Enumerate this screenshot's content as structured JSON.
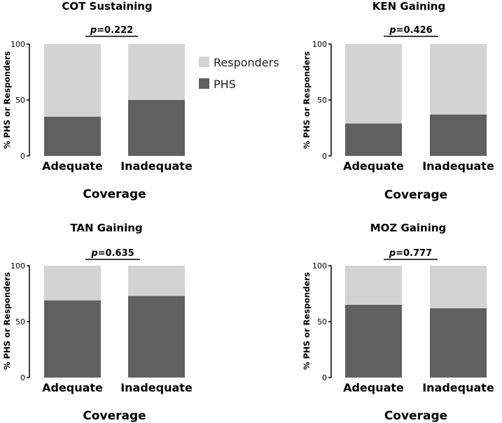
{
  "chart_data": [
    {
      "type": "bar",
      "stacked": true,
      "title": "COT Sustaining",
      "p_label": "p",
      "p_value": "=0.222",
      "categories": [
        "Adequate",
        "Inadequate"
      ],
      "series": [
        {
          "name": "PHS",
          "values": [
            35,
            50
          ]
        },
        {
          "name": "Responders",
          "values": [
            65,
            50
          ]
        }
      ],
      "xlabel": "Coverage",
      "ylabel": "% PHS or Responders",
      "ylim": [
        0,
        100
      ],
      "yticks": [
        "0",
        "50",
        "100"
      ],
      "colors": {
        "PHS": "#606060",
        "Responders": "#d3d3d3"
      }
    },
    {
      "type": "bar",
      "stacked": true,
      "title": "KEN Gaining",
      "p_label": "p",
      "p_value": "=0.426",
      "categories": [
        "Adequate",
        "Inadequate"
      ],
      "series": [
        {
          "name": "PHS",
          "values": [
            29,
            37
          ]
        },
        {
          "name": "Responders",
          "values": [
            71,
            63
          ]
        }
      ],
      "xlabel": "Coverage",
      "ylabel": "% PHS or Responders",
      "ylim": [
        0,
        100
      ],
      "yticks": [
        "0",
        "50",
        "100"
      ],
      "colors": {
        "PHS": "#606060",
        "Responders": "#d3d3d3"
      }
    },
    {
      "type": "bar",
      "stacked": true,
      "title": "TAN Gaining",
      "p_label": "p",
      "p_value": "=0.635",
      "categories": [
        "Adequate",
        "Inadequate"
      ],
      "series": [
        {
          "name": "PHS",
          "values": [
            69,
            73
          ]
        },
        {
          "name": "Responders",
          "values": [
            31,
            27
          ]
        }
      ],
      "xlabel": "Coverage",
      "ylabel": "% PHS or Responders",
      "ylim": [
        0,
        100
      ],
      "yticks": [
        "0",
        "50",
        "100"
      ],
      "colors": {
        "PHS": "#606060",
        "Responders": "#d3d3d3"
      }
    },
    {
      "type": "bar",
      "stacked": true,
      "title": "MOZ Gaining",
      "p_label": "p",
      "p_value": "=0.777",
      "categories": [
        "Adequate",
        "Inadequate"
      ],
      "series": [
        {
          "name": "PHS",
          "values": [
            65,
            62
          ]
        },
        {
          "name": "Responders",
          "values": [
            35,
            38
          ]
        }
      ],
      "xlabel": "Coverage",
      "ylabel": "% PHS or Responders",
      "ylim": [
        0,
        100
      ],
      "yticks": [
        "0",
        "50",
        "100"
      ],
      "colors": {
        "PHS": "#606060",
        "Responders": "#d3d3d3"
      }
    }
  ],
  "legend": {
    "placement": "right of top-left chart",
    "items": [
      {
        "label": "Responders",
        "color": "#d3d3d3"
      },
      {
        "label": "PHS",
        "color": "#606060"
      }
    ]
  }
}
